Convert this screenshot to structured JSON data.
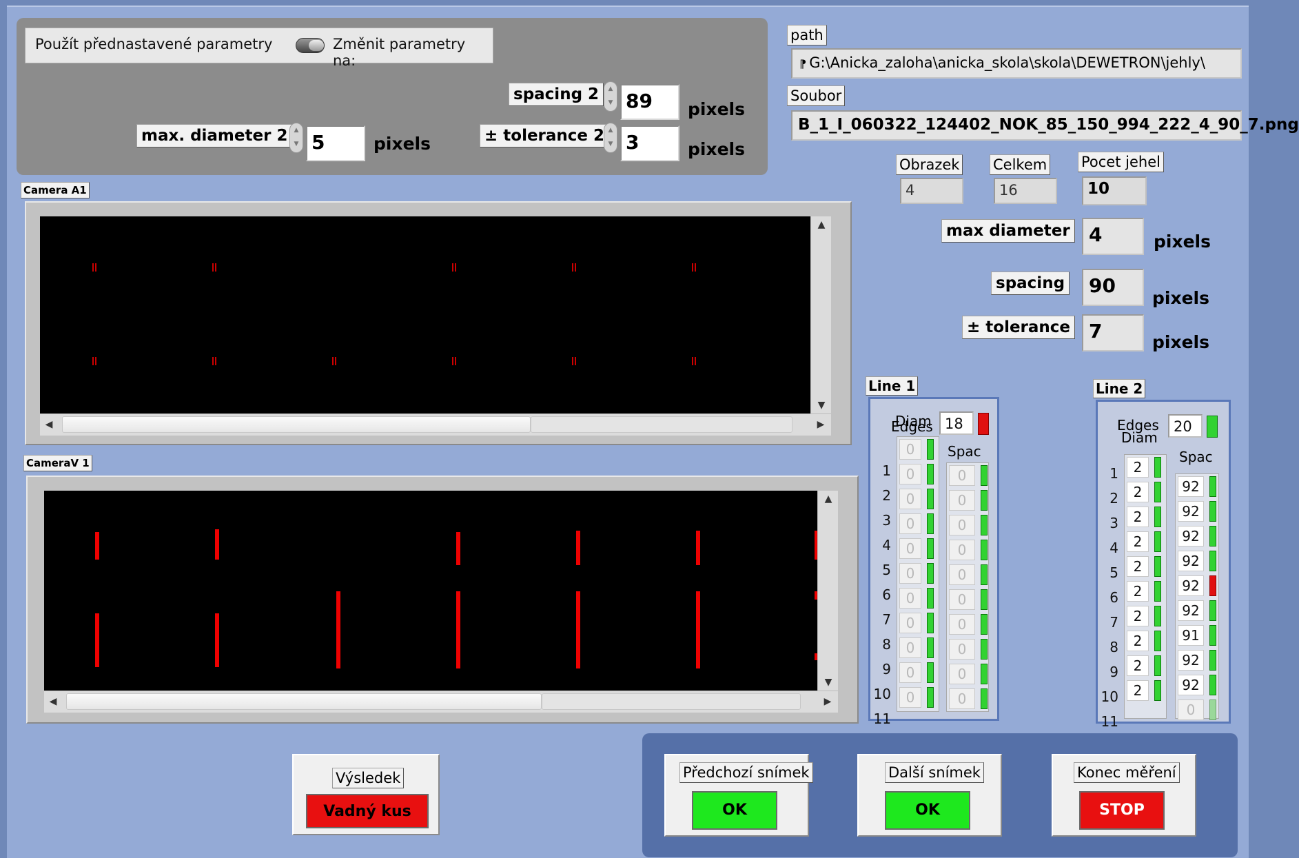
{
  "params": {
    "preset_label": "Použít přednastavené parametry",
    "change_label": "Změnit parametry na:",
    "spacing2_label": "spacing 2",
    "spacing2_value": "89",
    "tolerance2_label": "± tolerance 2",
    "tolerance2_value": "3",
    "maxdiam2_label": "max.  diameter 2",
    "maxdiam2_value": "5",
    "unit": "pixels"
  },
  "path": {
    "label": "path",
    "value": "G:\\Anicka_zaloha\\anicka_skola\\skola\\DEWETRON\\jehly\\"
  },
  "soubor": {
    "label": "Soubor",
    "value": "B_1_I_060322_124402_NOK_85_150_994_222_4_90_7.png"
  },
  "counters": {
    "obrazek_label": "Obrazek",
    "obrazek_value": "4",
    "celkem_label": "Celkem",
    "celkem_value": "16",
    "pocet_label": "Pocet jehel",
    "pocet_value": "10"
  },
  "measure": {
    "maxdiam_label": "max  diameter",
    "maxdiam_value": "4",
    "spacing_label": "spacing",
    "spacing_value": "90",
    "tolerance_label": "± tolerance",
    "tolerance_value": "7",
    "unit": "pixels"
  },
  "cameraA": {
    "label": "Camera A1"
  },
  "cameraV": {
    "label": "CameraV 1"
  },
  "line1": {
    "label": "Line 1",
    "edges_label": "Edges",
    "diam_label": "Diam",
    "spac_label": "Spac",
    "edges_value": "18",
    "status_color": "#e01010",
    "indices": [
      "1",
      "2",
      "3",
      "4",
      "5",
      "6",
      "7",
      "8",
      "9",
      "10",
      "11"
    ],
    "diam_values": [
      "0",
      "0",
      "0",
      "0",
      "0",
      "0",
      "0",
      "0",
      "0",
      "0",
      "0"
    ],
    "spac_values": [
      "0",
      "0",
      "0",
      "0",
      "0",
      "0",
      "0",
      "0",
      "0",
      "0"
    ]
  },
  "line2": {
    "label": "Line 2",
    "edges_label": "Edges",
    "diam_label": "Diam",
    "spac_label": "Spac",
    "edges_value": "20",
    "status_color": "#32d232",
    "indices": [
      "1",
      "2",
      "3",
      "4",
      "5",
      "6",
      "7",
      "8",
      "9",
      "10",
      "11"
    ],
    "diam_values": [
      "2",
      "2",
      "2",
      "2",
      "2",
      "2",
      "2",
      "2",
      "2",
      "2"
    ],
    "spac_values": [
      "92",
      "92",
      "92",
      "92",
      "92",
      "92",
      "91",
      "92",
      "92",
      "0"
    ]
  },
  "result": {
    "label": "Výsledek",
    "value": "Vadný kus",
    "color": "#e81010"
  },
  "buttons": {
    "prev_label": "Předchozí snímek",
    "prev_btn": "OK",
    "next_label": "Další snímek",
    "next_btn": "OK",
    "end_label": "Konec měření",
    "end_btn": "STOP"
  }
}
